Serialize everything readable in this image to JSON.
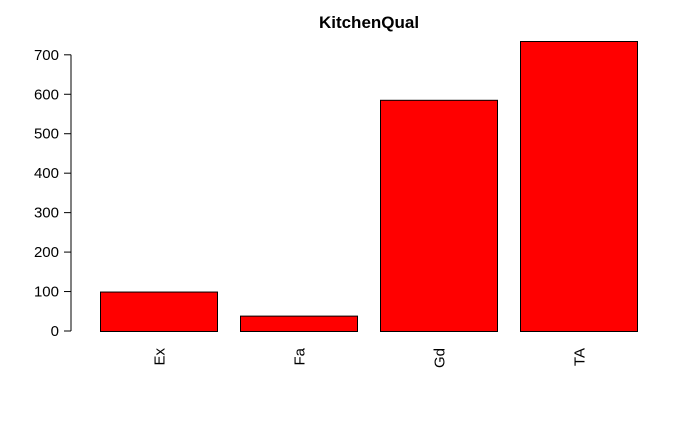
{
  "chart_data": {
    "type": "bar",
    "title": "KitchenQual",
    "categories": [
      "Ex",
      "Fa",
      "Gd",
      "TA"
    ],
    "values": [
      100,
      39,
      586,
      735
    ],
    "xlabel": "",
    "ylabel": "",
    "ylim": [
      0,
      735
    ],
    "y_ticks": [
      0,
      100,
      200,
      300,
      400,
      500,
      600,
      700
    ],
    "grid": false,
    "legend": "none",
    "bar_color": "#ff0000",
    "bar_stroke": "#000000"
  }
}
